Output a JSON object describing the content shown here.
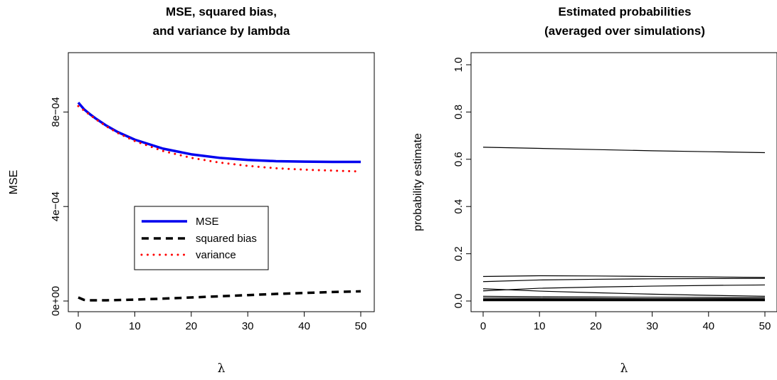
{
  "chart_data": [
    {
      "type": "line",
      "title_line1": "MSE, squared bias,",
      "title_line2": "and variance by lambda",
      "xlabel": "λ",
      "ylabel": "MSE",
      "xlim": [
        0,
        50
      ],
      "ylim": [
        0,
        0.001
      ],
      "x_ticks": [
        0,
        10,
        20,
        30,
        40,
        50
      ],
      "x_tick_labels": [
        "0",
        "10",
        "20",
        "30",
        "40",
        "50"
      ],
      "y_ticks": [
        0,
        0.0004,
        0.0008
      ],
      "y_tick_labels": [
        "0e+00",
        "4e−04",
        "8e−04"
      ],
      "grid": false,
      "legend_position": "center",
      "series": [
        {
          "name": "MSE",
          "color": "#0000ee",
          "style": "solid",
          "x": [
            0,
            1,
            2,
            3,
            5,
            7,
            10,
            15,
            20,
            25,
            30,
            35,
            40,
            45,
            50
          ],
          "y": [
            0.00084,
            0.000812,
            0.000792,
            0.000774,
            0.000742,
            0.000715,
            0.000683,
            0.000645,
            0.000621,
            0.000606,
            0.000597,
            0.000592,
            0.00059,
            0.000589,
            0.000589
          ]
        },
        {
          "name": "squared bias",
          "color": "#000000",
          "style": "dashed",
          "x": [
            0,
            1,
            2,
            3,
            5,
            7,
            10,
            15,
            20,
            25,
            30,
            35,
            40,
            45,
            50
          ],
          "y": [
            1.5e-05,
            5e-06,
            3e-06,
            3e-06,
            3e-06,
            4e-06,
            6e-06,
            1e-05,
            1.5e-05,
            2e-05,
            2.5e-05,
            3e-05,
            3.4e-05,
            3.8e-05,
            4.1e-05
          ]
        },
        {
          "name": "variance",
          "color": "#ff0000",
          "style": "dotted",
          "x": [
            0,
            1,
            2,
            3,
            5,
            7,
            10,
            15,
            20,
            25,
            30,
            35,
            40,
            45,
            50
          ],
          "y": [
            0.000825,
            0.000807,
            0.000789,
            0.000771,
            0.000739,
            0.000711,
            0.000677,
            0.000635,
            0.000606,
            0.000586,
            0.000572,
            0.000562,
            0.000556,
            0.000552,
            0.000548
          ]
        }
      ]
    },
    {
      "type": "line",
      "title_line1": "Estimated probabilities",
      "title_line2": "(averaged over simulations)",
      "xlabel": "λ",
      "ylabel": "probability estimate",
      "xlim": [
        0,
        50
      ],
      "ylim": [
        0,
        1
      ],
      "x_ticks": [
        0,
        10,
        20,
        30,
        40,
        50
      ],
      "x_tick_labels": [
        "0",
        "10",
        "20",
        "30",
        "40",
        "50"
      ],
      "y_ticks": [
        0,
        0.2,
        0.4,
        0.6,
        0.8,
        1.0
      ],
      "y_tick_labels": [
        "0.0",
        "0.2",
        "0.4",
        "0.6",
        "0.8",
        "1.0"
      ],
      "grid": false,
      "line_color": "#000000",
      "series": [
        {
          "x": [
            0,
            10,
            20,
            30,
            40,
            50
          ],
          "y": [
            0.651,
            0.646,
            0.641,
            0.636,
            0.632,
            0.628
          ]
        },
        {
          "x": [
            0,
            10,
            20,
            30,
            40,
            50
          ],
          "y": [
            0.104,
            0.107,
            0.106,
            0.104,
            0.102,
            0.1
          ]
        },
        {
          "x": [
            0,
            10,
            20,
            30,
            40,
            50
          ],
          "y": [
            0.082,
            0.089,
            0.092,
            0.094,
            0.095,
            0.096
          ]
        },
        {
          "x": [
            0,
            10,
            20,
            30,
            40,
            50
          ],
          "y": [
            0.043,
            0.054,
            0.059,
            0.063,
            0.066,
            0.068
          ]
        },
        {
          "x": [
            0,
            10,
            20,
            30,
            40,
            50
          ],
          "y": [
            0.052,
            0.042,
            0.035,
            0.029,
            0.024,
            0.02
          ]
        },
        {
          "x": [
            0,
            10,
            20,
            30,
            40,
            50
          ],
          "y": [
            0.02,
            0.018,
            0.017,
            0.016,
            0.015,
            0.014
          ]
        },
        {
          "x": [
            0,
            10,
            20,
            30,
            40,
            50
          ],
          "y": [
            0.013,
            0.012,
            0.011,
            0.01,
            0.01,
            0.009
          ]
        },
        {
          "x": [
            0,
            10,
            20,
            30,
            40,
            50
          ],
          "y": [
            0.008,
            0.008,
            0.007,
            0.007,
            0.007,
            0.006
          ]
        },
        {
          "x": [
            0,
            10,
            20,
            30,
            40,
            50
          ],
          "y": [
            0.005,
            0.005,
            0.005,
            0.004,
            0.004,
            0.004
          ]
        },
        {
          "x": [
            0,
            10,
            20,
            30,
            40,
            50
          ],
          "y": [
            0.003,
            0.003,
            0.003,
            0.003,
            0.003,
            0.003
          ]
        },
        {
          "x": [
            0,
            10,
            20,
            30,
            40,
            50
          ],
          "y": [
            0.001,
            0.001,
            0.001,
            0.001,
            0.001,
            0.001
          ]
        }
      ]
    }
  ]
}
